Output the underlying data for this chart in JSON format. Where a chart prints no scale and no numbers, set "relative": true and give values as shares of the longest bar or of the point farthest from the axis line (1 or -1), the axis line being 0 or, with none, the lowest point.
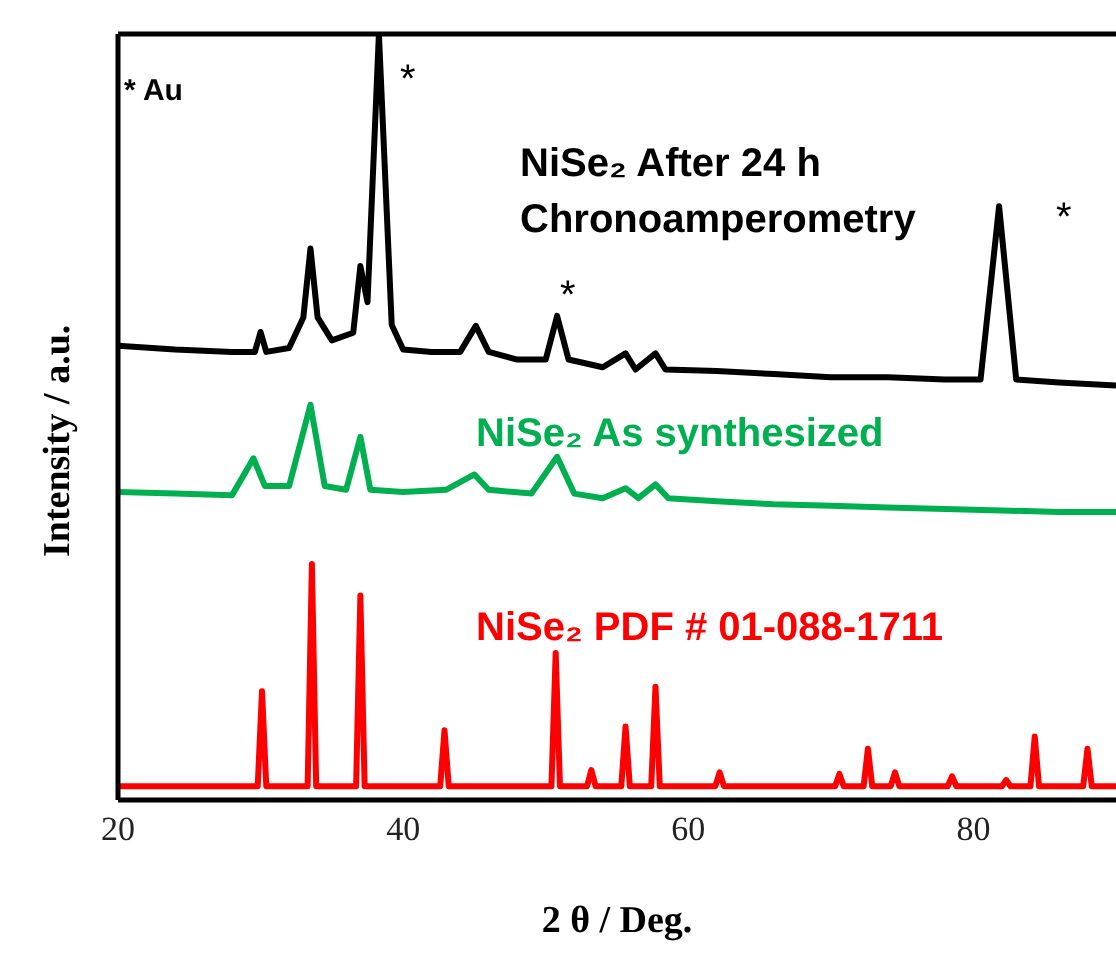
{
  "chart_data": {
    "type": "line",
    "relative": true,
    "xlabel": "2 θ / Deg.",
    "ylabel": "Intensity / a.u.",
    "xlim": [
      20,
      90
    ],
    "xticks": [
      20,
      40,
      60,
      80
    ],
    "marker": "none",
    "line_style": "solid",
    "annotations": [
      "* Au",
      "*",
      "*",
      "*"
    ],
    "series": [
      {
        "name": "NiSe₂ After 24 h Chronoamperometry",
        "color": "#000000",
        "x": [
          20,
          24,
          28,
          29.6,
          30,
          30.4,
          32,
          33,
          33.5,
          34,
          35,
          36.5,
          37,
          37.5,
          38.3,
          39.2,
          40,
          42,
          44,
          45.1,
          46,
          48,
          50,
          50.8,
          51.6,
          54,
          55.6,
          56.3,
          57.7,
          58.4,
          62,
          66,
          70,
          74,
          78,
          80.5,
          81.8,
          83,
          86,
          90
        ],
        "values": [
          0.593,
          0.588,
          0.585,
          0.585,
          0.611,
          0.585,
          0.59,
          0.63,
          0.72,
          0.63,
          0.6,
          0.61,
          0.697,
          0.65,
          1.0,
          0.62,
          0.588,
          0.585,
          0.585,
          0.619,
          0.585,
          0.575,
          0.575,
          0.632,
          0.575,
          0.565,
          0.583,
          0.562,
          0.583,
          0.562,
          0.56,
          0.556,
          0.552,
          0.552,
          0.549,
          0.549,
          0.775,
          0.549,
          0.545,
          0.541
        ]
      },
      {
        "name": "NiSe₂ As synthesized",
        "color": "#00b050",
        "x": [
          20,
          24,
          28,
          29.5,
          30.3,
          32,
          33.5,
          34.5,
          36,
          37,
          37.7,
          40,
          43,
          45,
          46,
          49,
          50.8,
          52,
          54,
          55.6,
          56.5,
          57.7,
          58.6,
          62,
          66,
          70,
          74,
          78,
          82,
          86,
          90
        ],
        "values": [
          0.402,
          0.4,
          0.398,
          0.446,
          0.41,
          0.41,
          0.516,
          0.41,
          0.405,
          0.474,
          0.405,
          0.402,
          0.405,
          0.425,
          0.405,
          0.4,
          0.448,
          0.4,
          0.394,
          0.407,
          0.394,
          0.412,
          0.394,
          0.39,
          0.386,
          0.384,
          0.382,
          0.38,
          0.378,
          0.376,
          0.376
        ]
      },
      {
        "name": "NiSe₂ PDF # 01-088-1711",
        "color": "#ff0000",
        "x": [
          20,
          29.8,
          30.1,
          30.4,
          33.3,
          33.6,
          33.9,
          36.7,
          37,
          37.3,
          42.6,
          42.9,
          43.2,
          50.4,
          50.7,
          51,
          52.9,
          53.2,
          53.5,
          55.3,
          55.6,
          55.9,
          57.4,
          57.7,
          58,
          61.9,
          62.2,
          62.5,
          70.3,
          70.6,
          70.9,
          72.3,
          72.6,
          72.9,
          74.2,
          74.5,
          74.8,
          78.2,
          78.5,
          78.8,
          82,
          82.3,
          82.6,
          84,
          84.3,
          84.6,
          87.7,
          88,
          88.3,
          90
        ],
        "values": [
          0.018,
          0.018,
          0.142,
          0.018,
          0.018,
          0.308,
          0.018,
          0.018,
          0.267,
          0.018,
          0.018,
          0.091,
          0.018,
          0.018,
          0.192,
          0.018,
          0.018,
          0.039,
          0.018,
          0.018,
          0.096,
          0.018,
          0.018,
          0.148,
          0.018,
          0.018,
          0.036,
          0.018,
          0.018,
          0.034,
          0.018,
          0.018,
          0.067,
          0.018,
          0.018,
          0.036,
          0.018,
          0.018,
          0.031,
          0.018,
          0.018,
          0.026,
          0.018,
          0.018,
          0.083,
          0.018,
          0.018,
          0.067,
          0.018,
          0.018
        ]
      }
    ]
  }
}
